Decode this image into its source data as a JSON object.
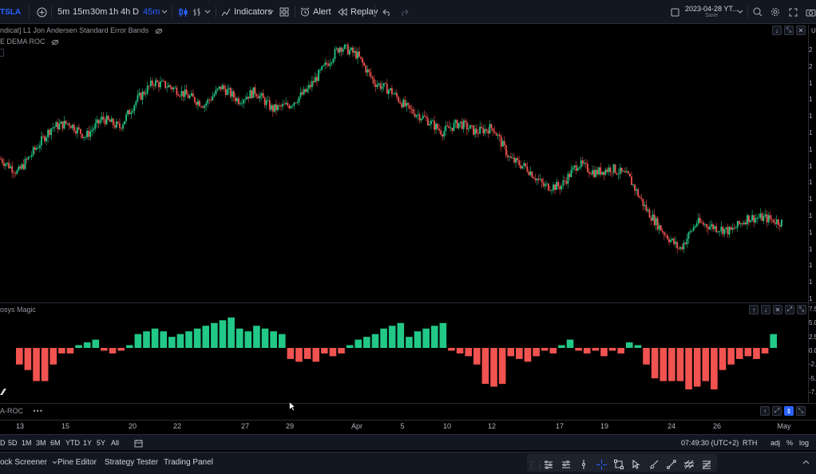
{
  "toolbar": {
    "symbol": "TSLA",
    "intervals": [
      "5m",
      "15m",
      "30m",
      "1h",
      "4h",
      "D",
      "45m"
    ],
    "active_interval": "45m",
    "indicators_label": "Indicators",
    "alert_label": "Alert",
    "replay_label": "Replay",
    "layout_date": "2023-04-28 YT...",
    "save_label": "Save",
    "right_edge_letter": "U"
  },
  "legends": {
    "main_1": "ndicat] L1 Jon Andersen Standard Error Bands",
    "main_2": "E DEMA ROC",
    "osc_title": "osys Magic",
    "pane3_title": "A-ROC",
    "pane3_dots": "•••"
  },
  "price_axis": {
    "main": [
      "2",
      "2",
      "1",
      "1",
      "1",
      "1",
      "1",
      "1",
      "1",
      "1",
      "1",
      "1",
      "1",
      "1",
      "1",
      "1"
    ],
    "osc": [
      "7.5",
      "5.0",
      "2.5",
      "0.0",
      "-2.5",
      "-5.0",
      "-7.5"
    ]
  },
  "time_axis": {
    "ticks": [
      "13",
      "15",
      "20",
      "22",
      "27",
      "29",
      "Apr",
      "5",
      "10",
      "12",
      "17",
      "19",
      "24",
      "26",
      "May"
    ]
  },
  "range_bar": {
    "ranges": [
      "D",
      "5D",
      "1M",
      "3M",
      "6M",
      "YTD",
      "1Y",
      "5Y",
      "All"
    ],
    "clock": "07:49:30 (UTC+2)",
    "session": "RTH",
    "adj": "adj",
    "percent": "%",
    "log": "log"
  },
  "bottom_bar": {
    "tabs": [
      "ock Screener",
      "Pine Editor",
      "Strategy Tester",
      "Trading Panel"
    ]
  },
  "colors": {
    "up": "#22c886",
    "down": "#f05350",
    "accent": "#2962ff",
    "bg": "#000000",
    "panel": "#131722"
  },
  "chart_data": [
    {
      "type": "candlestick",
      "title": "TSLA 45m",
      "x_categories": [
        "13",
        "15",
        "20",
        "22",
        "27",
        "29",
        "Apr",
        "5",
        "10",
        "12",
        "17",
        "19",
        "24",
        "26",
        "May"
      ],
      "close_path": [
        176,
        173,
        178,
        183,
        184,
        181,
        185,
        183,
        189,
        193,
        192,
        190,
        188,
        192,
        189,
        191,
        187,
        188,
        191,
        196,
        201,
        199,
        193,
        191,
        187,
        185,
        182,
        184,
        182,
        183,
        176,
        174,
        170,
        170,
        175,
        173,
        174,
        172,
        165,
        160,
        156,
        162,
        161,
        160,
        163,
        163,
        162
      ]
    },
    {
      "type": "bar",
      "title": "osys Magic",
      "ylim": [
        -7.5,
        7.5
      ],
      "values": [
        -3,
        -4,
        -6,
        -6,
        -3,
        -1,
        -1,
        0.5,
        1,
        1.5,
        -0.5,
        -1,
        -0.5,
        0.5,
        2.5,
        3,
        3.5,
        3,
        2,
        2.5,
        3,
        3.5,
        4,
        4.5,
        5,
        5.5,
        3.5,
        3,
        4,
        3.5,
        3,
        2.5,
        -2,
        -2.5,
        -2,
        -2.5,
        -1,
        -1.5,
        -1,
        0.5,
        1.5,
        2,
        2.5,
        3.5,
        4,
        4.5,
        2,
        3,
        3.5,
        4,
        4.5,
        -0.5,
        -1,
        -1.5,
        -3,
        -6.5,
        -7,
        -6.5,
        -1.5,
        -2,
        -2.5,
        -1.5,
        -0.5,
        -1,
        0.5,
        1.5,
        -0.5,
        -1,
        -0.5,
        -1.5,
        -0.5,
        -1,
        1,
        0.5,
        -3,
        -5.5,
        -6,
        -6,
        -6,
        -7.5,
        -7,
        -6,
        -7.5,
        -4,
        -3,
        -2,
        -1.5,
        -2,
        -1,
        2.5
      ]
    }
  ]
}
